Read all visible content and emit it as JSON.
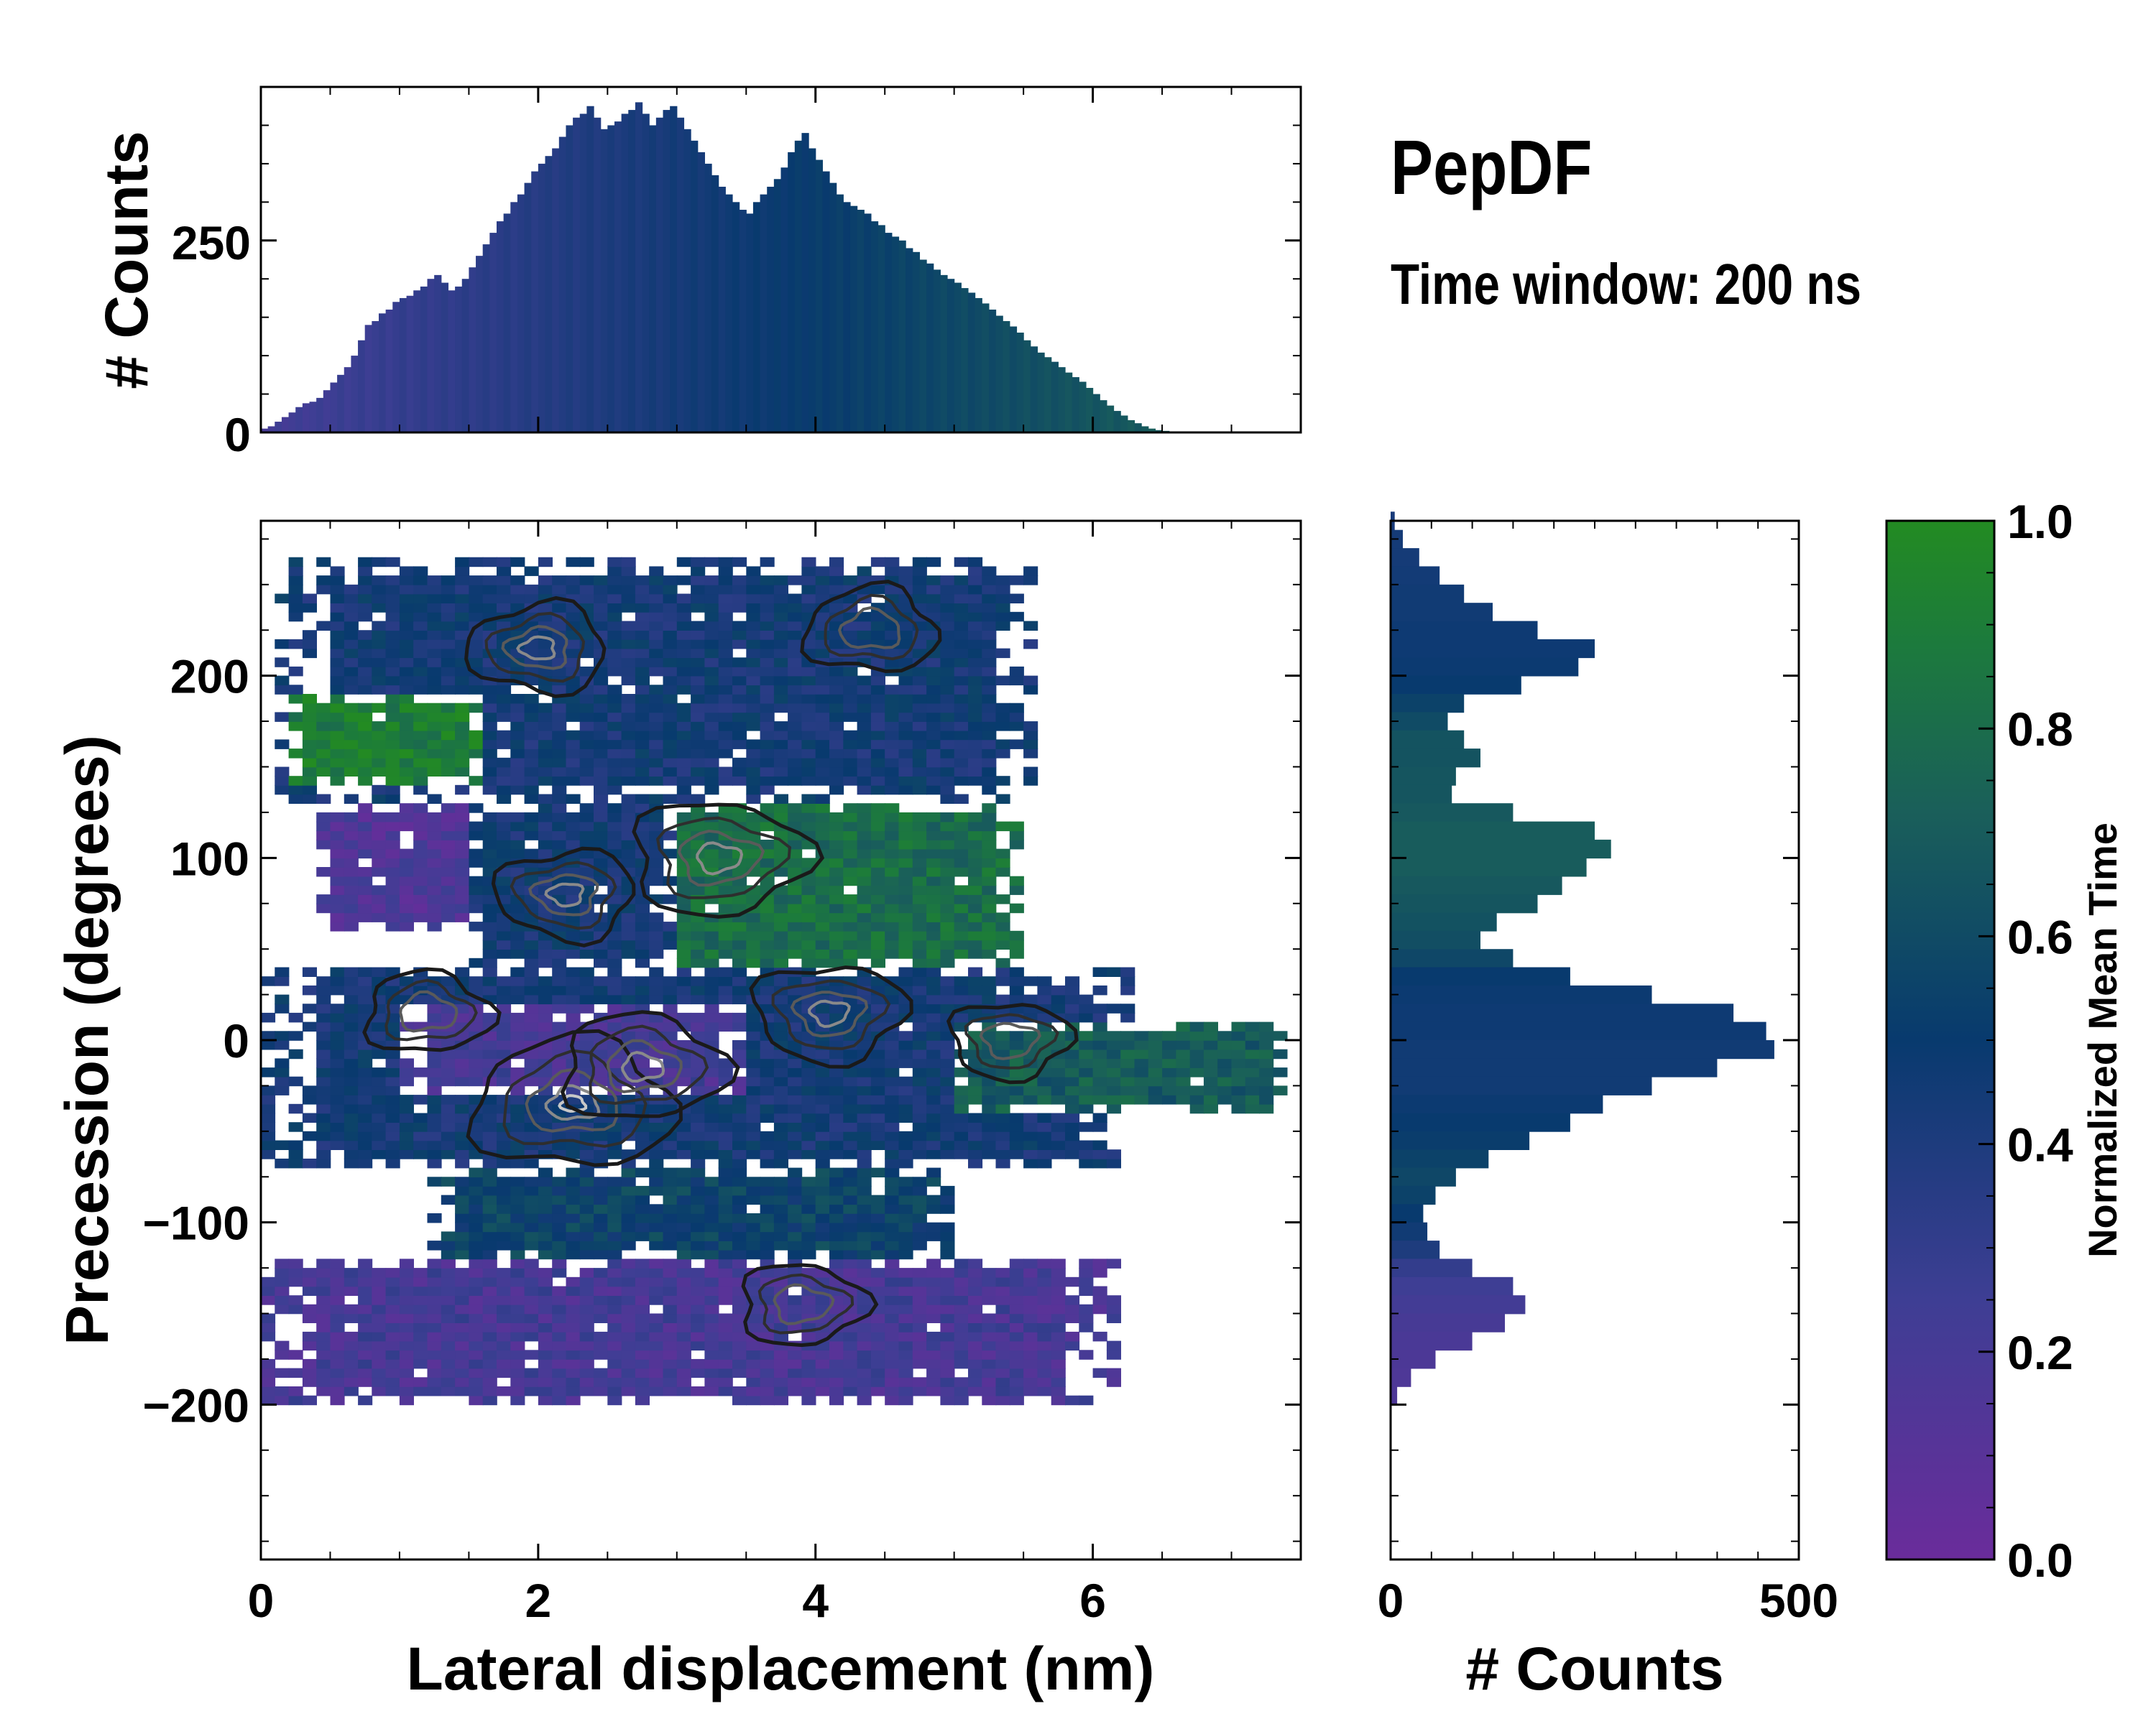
{
  "figure": {
    "title": "PepDF",
    "subtitle": "Time window: 200 ns"
  },
  "chart_data": [
    {
      "id": "top-histogram",
      "type": "bar",
      "title": "",
      "xlabel": "",
      "ylabel": "# Counts",
      "xlim": [
        0,
        7.5
      ],
      "ylim": [
        0,
        450
      ],
      "yticks": [
        0,
        250
      ],
      "bin_width": 0.05,
      "bin_start": 0.0,
      "values": [
        5,
        8,
        14,
        20,
        26,
        33,
        38,
        40,
        45,
        55,
        65,
        75,
        85,
        100,
        120,
        140,
        145,
        155,
        160,
        170,
        175,
        178,
        185,
        190,
        200,
        205,
        195,
        185,
        190,
        200,
        215,
        230,
        245,
        260,
        275,
        285,
        300,
        310,
        325,
        340,
        350,
        360,
        370,
        385,
        400,
        410,
        415,
        425,
        410,
        395,
        400,
        405,
        415,
        420,
        430,
        415,
        400,
        410,
        420,
        425,
        410,
        395,
        380,
        365,
        350,
        335,
        320,
        310,
        300,
        290,
        285,
        300,
        310,
        320,
        330,
        345,
        365,
        380,
        390,
        370,
        355,
        340,
        325,
        310,
        300,
        295,
        290,
        285,
        275,
        270,
        260,
        255,
        250,
        240,
        235,
        225,
        220,
        212,
        205,
        200,
        195,
        188,
        182,
        175,
        168,
        160,
        152,
        145,
        138,
        130,
        120,
        112,
        104,
        98,
        92,
        85,
        78,
        72,
        66,
        58,
        50,
        42,
        35,
        28,
        22,
        16,
        12,
        8,
        5,
        3,
        2,
        1,
        1,
        0,
        0,
        0,
        0,
        0,
        0,
        0,
        0,
        0,
        0,
        0,
        0,
        0,
        0,
        0,
        0,
        0
      ]
    },
    {
      "id": "right-histogram",
      "type": "bar",
      "orientation": "horizontal",
      "title": "",
      "xlabel": "# Counts",
      "ylabel": "",
      "xlim": [
        0,
        500
      ],
      "ylim": [
        -285,
        285
      ],
      "xticks": [
        0,
        500
      ],
      "bin_width": 5,
      "bins": [
        {
          "y": 280,
          "count": 5,
          "t": 0.42
        },
        {
          "y": 270,
          "count": 15,
          "t": 0.44
        },
        {
          "y": 260,
          "count": 35,
          "t": 0.44
        },
        {
          "y": 250,
          "count": 60,
          "t": 0.45
        },
        {
          "y": 240,
          "count": 90,
          "t": 0.46
        },
        {
          "y": 230,
          "count": 125,
          "t": 0.46
        },
        {
          "y": 220,
          "count": 180,
          "t": 0.47
        },
        {
          "y": 210,
          "count": 250,
          "t": 0.47
        },
        {
          "y": 200,
          "count": 230,
          "t": 0.48
        },
        {
          "y": 190,
          "count": 160,
          "t": 0.5
        },
        {
          "y": 180,
          "count": 90,
          "t": 0.55
        },
        {
          "y": 170,
          "count": 70,
          "t": 0.6
        },
        {
          "y": 160,
          "count": 90,
          "t": 0.65
        },
        {
          "y": 150,
          "count": 110,
          "t": 0.65
        },
        {
          "y": 140,
          "count": 80,
          "t": 0.66
        },
        {
          "y": 130,
          "count": 75,
          "t": 0.66
        },
        {
          "y": 120,
          "count": 150,
          "t": 0.68
        },
        {
          "y": 110,
          "count": 250,
          "t": 0.7
        },
        {
          "y": 100,
          "count": 270,
          "t": 0.7
        },
        {
          "y": 90,
          "count": 240,
          "t": 0.7
        },
        {
          "y": 80,
          "count": 210,
          "t": 0.68
        },
        {
          "y": 70,
          "count": 180,
          "t": 0.66
        },
        {
          "y": 60,
          "count": 130,
          "t": 0.64
        },
        {
          "y": 50,
          "count": 110,
          "t": 0.62
        },
        {
          "y": 40,
          "count": 150,
          "t": 0.58
        },
        {
          "y": 30,
          "count": 220,
          "t": 0.5
        },
        {
          "y": 20,
          "count": 320,
          "t": 0.48
        },
        {
          "y": 10,
          "count": 420,
          "t": 0.47
        },
        {
          "y": 0,
          "count": 460,
          "t": 0.47
        },
        {
          "y": -10,
          "count": 470,
          "t": 0.46
        },
        {
          "y": -20,
          "count": 400,
          "t": 0.46
        },
        {
          "y": -30,
          "count": 320,
          "t": 0.46
        },
        {
          "y": -40,
          "count": 260,
          "t": 0.48
        },
        {
          "y": -50,
          "count": 220,
          "t": 0.5
        },
        {
          "y": -60,
          "count": 170,
          "t": 0.52
        },
        {
          "y": -70,
          "count": 120,
          "t": 0.55
        },
        {
          "y": -80,
          "count": 80,
          "t": 0.58
        },
        {
          "y": -90,
          "count": 55,
          "t": 0.55
        },
        {
          "y": -100,
          "count": 40,
          "t": 0.5
        },
        {
          "y": -110,
          "count": 45,
          "t": 0.46
        },
        {
          "y": -120,
          "count": 60,
          "t": 0.4
        },
        {
          "y": -130,
          "count": 100,
          "t": 0.3
        },
        {
          "y": -140,
          "count": 150,
          "t": 0.25
        },
        {
          "y": -150,
          "count": 165,
          "t": 0.22
        },
        {
          "y": -160,
          "count": 140,
          "t": 0.2
        },
        {
          "y": -170,
          "count": 100,
          "t": 0.18
        },
        {
          "y": -180,
          "count": 55,
          "t": 0.17
        },
        {
          "y": -190,
          "count": 25,
          "t": 0.16
        },
        {
          "y": -200,
          "count": 8,
          "t": 0.16
        }
      ]
    },
    {
      "id": "main-heatmap",
      "type": "heatmap",
      "title": "",
      "xlabel": "Lateral displacement (nm)",
      "ylabel": "Precession (degrees)",
      "xlim": [
        0,
        7.5
      ],
      "ylim": [
        -285,
        285
      ],
      "xticks": [
        0,
        2,
        4,
        6
      ],
      "yticks": [
        -200,
        -100,
        0,
        100,
        200
      ],
      "cell_size": {
        "x": 0.1,
        "y": 5
      },
      "regions": [
        {
          "name": "upper-band",
          "x": [
            0.15,
            5.6
          ],
          "y": [
            130,
            265
          ],
          "t": 0.45
        },
        {
          "name": "green-pocket",
          "x": [
            0.25,
            1.6
          ],
          "y": [
            140,
            190
          ],
          "t": 0.9
        },
        {
          "name": "purple-left",
          "x": [
            0.4,
            1.6
          ],
          "y": [
            60,
            130
          ],
          "t": 0.15
        },
        {
          "name": "middle-green",
          "x": [
            2.5,
            5.5
          ],
          "y": [
            40,
            130
          ],
          "t": 0.8
        },
        {
          "name": "middle-blue",
          "x": [
            1.5,
            3.0
          ],
          "y": [
            40,
            130
          ],
          "t": 0.45
        },
        {
          "name": "center-band",
          "x": [
            0.0,
            6.3
          ],
          "y": [
            -70,
            40
          ],
          "t": 0.45
        },
        {
          "name": "right-tail",
          "x": [
            5.0,
            7.4
          ],
          "y": [
            -40,
            10
          ],
          "t": 0.7
        },
        {
          "name": "purple-center",
          "x": [
            1.0,
            3.5
          ],
          "y": [
            -30,
            20
          ],
          "t": 0.2
        },
        {
          "name": "lower-mid",
          "x": [
            1.2,
            5.0
          ],
          "y": [
            -120,
            -70
          ],
          "t": 0.55
        },
        {
          "name": "lower-band",
          "x": [
            0.0,
            6.2
          ],
          "y": [
            -200,
            -120
          ],
          "t": 0.2
        }
      ],
      "peaks": [
        {
          "x": 2.25,
          "y": -35,
          "weight": 1.0
        },
        {
          "x": 2.75,
          "y": -15,
          "weight": 0.7
        },
        {
          "x": 3.3,
          "y": 100,
          "weight": 0.8
        },
        {
          "x": 4.1,
          "y": 15,
          "weight": 0.6
        },
        {
          "x": 2.2,
          "y": 80,
          "weight": 0.5
        },
        {
          "x": 2.0,
          "y": 215,
          "weight": 0.5
        },
        {
          "x": 4.4,
          "y": 225,
          "weight": 0.45
        },
        {
          "x": 1.2,
          "y": 15,
          "weight": 0.4
        },
        {
          "x": 3.9,
          "y": -145,
          "weight": 0.4
        },
        {
          "x": 5.4,
          "y": 0,
          "weight": 0.35
        }
      ]
    },
    {
      "id": "colorbar",
      "type": "colorbar",
      "label": "Normalized Mean Time",
      "range": [
        0.0,
        1.0
      ],
      "ticks": [
        "0.0",
        "0.2",
        "0.4",
        "0.6",
        "0.8",
        "1.0"
      ],
      "colormap_stops": [
        "#6a2c9b",
        "#3e3e94",
        "#083a6e",
        "#1a5f5a",
        "#1c7a3d",
        "#238b22"
      ]
    }
  ]
}
